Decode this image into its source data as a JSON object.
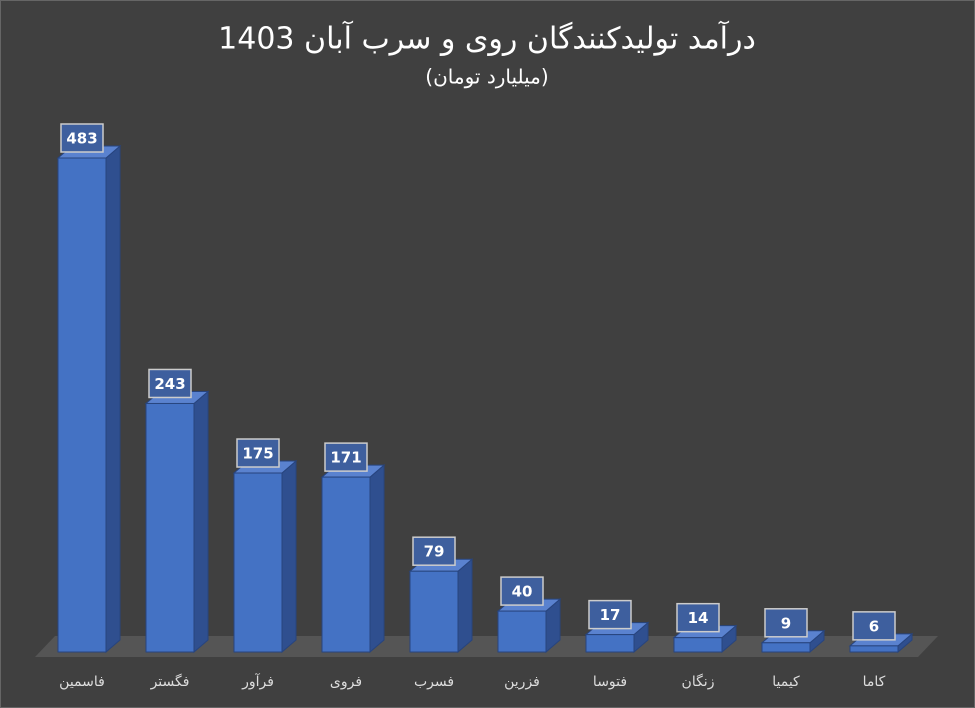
{
  "chart_data": {
    "type": "bar3d",
    "title": "درآمد تولیدکنندگان روی و سرب آبان 1403",
    "subtitle": "(میلیارد تومان)",
    "categories": [
      "فاسمین",
      "فگستر",
      "فرآور",
      "فروی",
      "فسرب",
      "فزرین",
      "فتوسا",
      "زنگان",
      "کیمیا",
      "کاما"
    ],
    "values": [
      483,
      243,
      175,
      171,
      79,
      40,
      17,
      14,
      9,
      6
    ],
    "color": "#4472c4"
  }
}
